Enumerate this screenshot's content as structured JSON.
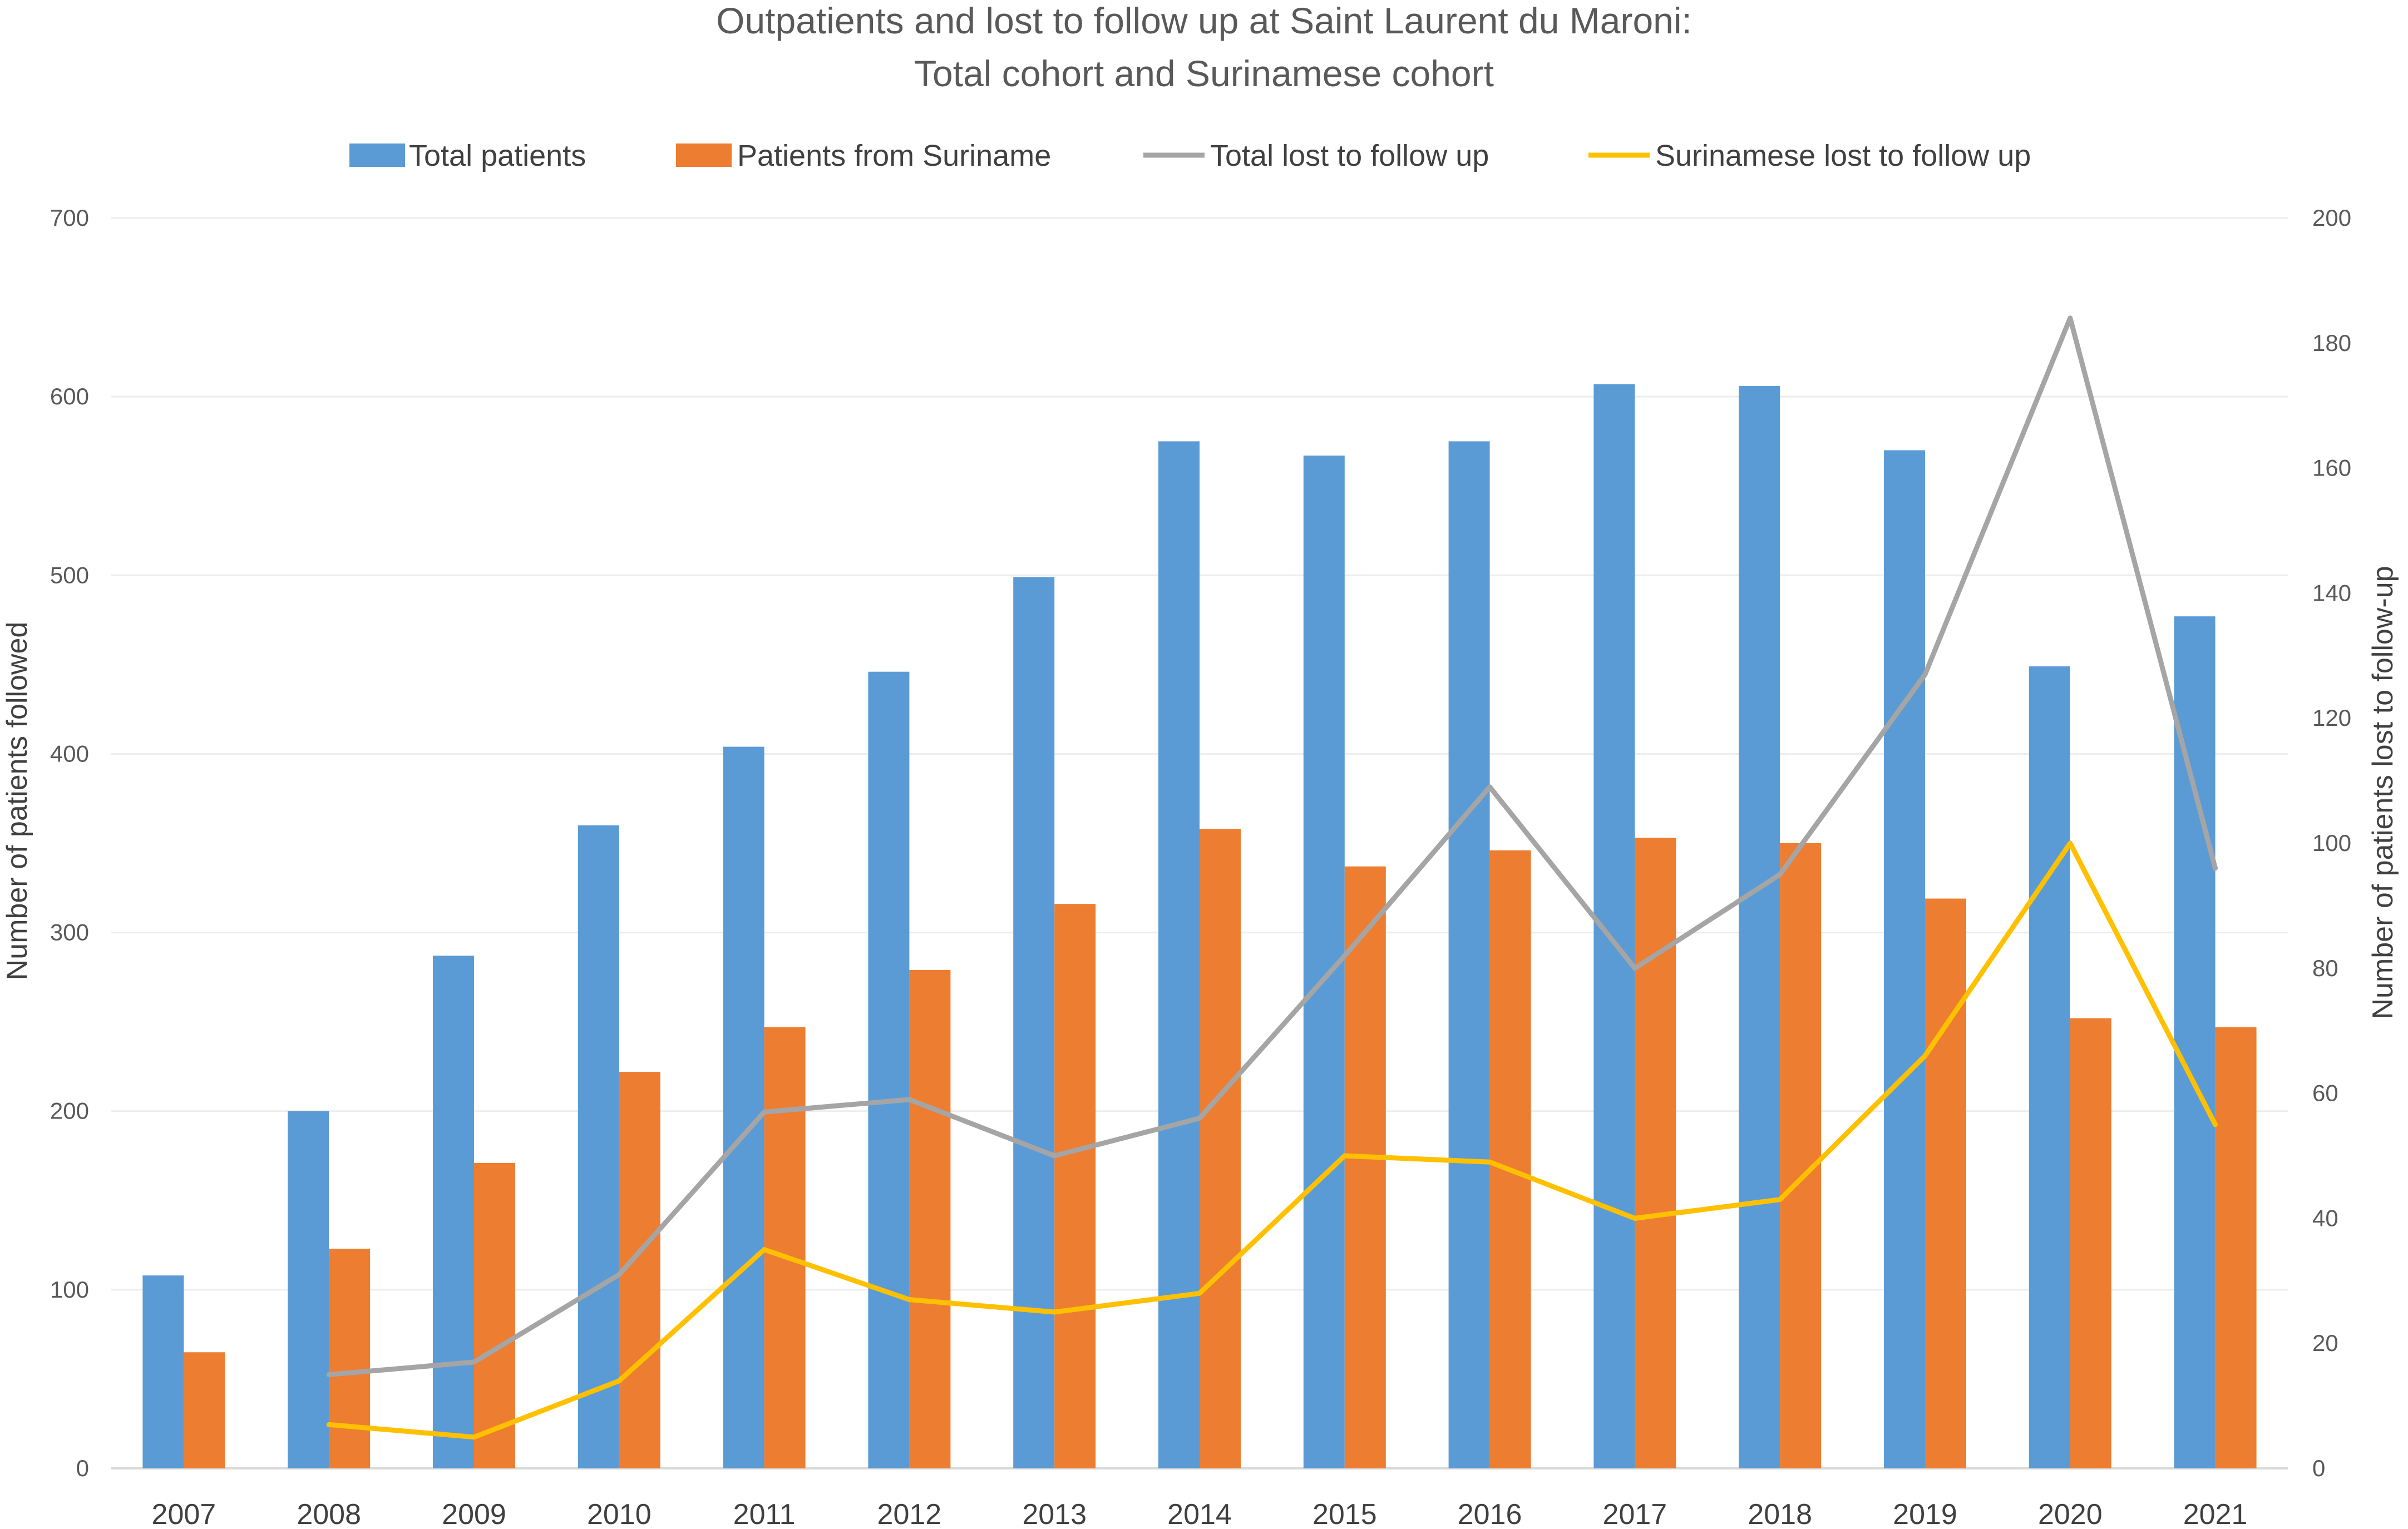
{
  "chart_data": {
    "type": "bar",
    "title": "Outpatients and lost to follow up  at Saint Laurent du Maroni:",
    "subtitle": "Total cohort and Surinamese cohort",
    "categories": [
      "2007",
      "2008",
      "2009",
      "2010",
      "2011",
      "2012",
      "2013",
      "2014",
      "2015",
      "2016",
      "2017",
      "2018",
      "2019",
      "2020",
      "2021"
    ],
    "series": [
      {
        "name": "Total patients",
        "type": "bar",
        "axis": "left",
        "color": "#5B9BD5",
        "values": [
          108,
          200,
          287,
          360,
          404,
          446,
          499,
          575,
          567,
          575,
          607,
          606,
          570,
          449,
          477
        ]
      },
      {
        "name": "Patients from Suriname",
        "type": "bar",
        "axis": "left",
        "color": "#ED7D31",
        "values": [
          65,
          123,
          171,
          222,
          247,
          279,
          316,
          358,
          337,
          346,
          353,
          350,
          319,
          252,
          247
        ]
      },
      {
        "name": "Total lost to follow up",
        "type": "line",
        "axis": "right",
        "color": "#A5A5A5",
        "values": [
          null,
          15,
          17,
          31,
          57,
          59,
          50,
          56,
          82,
          109,
          80,
          95,
          127,
          184,
          96
        ]
      },
      {
        "name": "Surinamese lost to follow up",
        "type": "line",
        "axis": "right",
        "color": "#FFC000",
        "values": [
          null,
          7,
          5,
          14,
          35,
          27,
          25,
          28,
          50,
          49,
          40,
          43,
          66,
          100,
          55
        ]
      }
    ],
    "ylabel": "Number of patients followed",
    "y2label": "Number of patients lost to follow-up",
    "ylim": [
      0,
      700
    ],
    "y2lim": [
      0,
      200
    ],
    "yticks": [
      0,
      100,
      200,
      300,
      400,
      500,
      600,
      700
    ],
    "y2ticks": [
      0,
      20,
      40,
      60,
      80,
      100,
      120,
      140,
      160,
      180,
      200
    ],
    "grid": true,
    "legend": "top"
  }
}
